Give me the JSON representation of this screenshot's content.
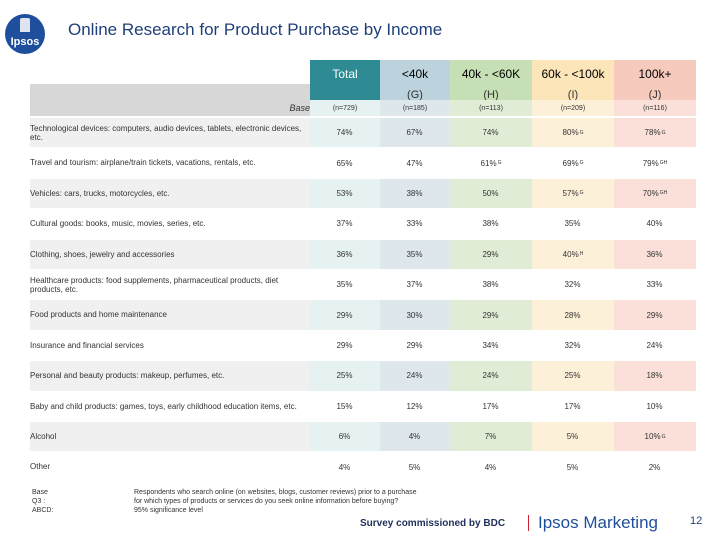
{
  "logo_text": "Ipsos",
  "title": "Online Research for Product Purchase by Income",
  "columns": [
    {
      "label": "Total",
      "letter": ""
    },
    {
      "label": "<40k",
      "letter": "(G)"
    },
    {
      "label": "40k - <60K",
      "letter": "(H)"
    },
    {
      "label": "60k - <100k",
      "letter": "(I)"
    },
    {
      "label": "100k+",
      "letter": "(J)"
    }
  ],
  "base_row": {
    "label": "Base",
    "values": [
      "(n=729)",
      "(n=185)",
      "(n=113)",
      "(n=209)",
      "(n=116)"
    ]
  },
  "rows": [
    {
      "label": "Technological devices: computers, audio devices, tablets, electronic devices, etc.",
      "values": [
        [
          "74%",
          ""
        ],
        [
          "67%",
          ""
        ],
        [
          "74%",
          ""
        ],
        [
          "80%",
          "G"
        ],
        [
          "78%",
          "G"
        ]
      ]
    },
    {
      "label": "Travel and tourism: airplane/train tickets, vacations, rentals, etc.",
      "values": [
        [
          "65%",
          ""
        ],
        [
          "47%",
          ""
        ],
        [
          "61%",
          "G"
        ],
        [
          "69%",
          "G"
        ],
        [
          "79%",
          "GH"
        ]
      ]
    },
    {
      "label": "Vehicles: cars, trucks, motorcycles, etc.",
      "values": [
        [
          "53%",
          ""
        ],
        [
          "38%",
          ""
        ],
        [
          "50%",
          ""
        ],
        [
          "57%",
          "G"
        ],
        [
          "70%",
          "GH"
        ]
      ]
    },
    {
      "label": "Cultural goods: books, music, movies, series, etc.",
      "values": [
        [
          "37%",
          ""
        ],
        [
          "33%",
          ""
        ],
        [
          "38%",
          ""
        ],
        [
          "35%",
          ""
        ],
        [
          "40%",
          ""
        ]
      ]
    },
    {
      "label": "Clothing, shoes, jewelry and accessories",
      "values": [
        [
          "36%",
          ""
        ],
        [
          "35%",
          ""
        ],
        [
          "29%",
          ""
        ],
        [
          "40%",
          "H"
        ],
        [
          "36%",
          ""
        ]
      ]
    },
    {
      "label": "Healthcare products: food supplements, pharmaceutical products, diet products, etc.",
      "values": [
        [
          "35%",
          ""
        ],
        [
          "37%",
          ""
        ],
        [
          "38%",
          ""
        ],
        [
          "32%",
          ""
        ],
        [
          "33%",
          ""
        ]
      ]
    },
    {
      "label": "Food products and home maintenance",
      "values": [
        [
          "29%",
          ""
        ],
        [
          "30%",
          ""
        ],
        [
          "29%",
          ""
        ],
        [
          "28%",
          ""
        ],
        [
          "29%",
          ""
        ]
      ]
    },
    {
      "label": "Insurance and financial services",
      "values": [
        [
          "29%",
          ""
        ],
        [
          "29%",
          ""
        ],
        [
          "34%",
          ""
        ],
        [
          "32%",
          ""
        ],
        [
          "24%",
          ""
        ]
      ]
    },
    {
      "label": "Personal and beauty products: makeup, perfumes, etc.",
      "values": [
        [
          "25%",
          ""
        ],
        [
          "24%",
          ""
        ],
        [
          "24%",
          ""
        ],
        [
          "25%",
          ""
        ],
        [
          "18%",
          ""
        ]
      ]
    },
    {
      "label": "Baby and child products: games, toys, early childhood education items, etc.",
      "values": [
        [
          "15%",
          ""
        ],
        [
          "12%",
          ""
        ],
        [
          "17%",
          ""
        ],
        [
          "17%",
          ""
        ],
        [
          "10%",
          ""
        ]
      ]
    },
    {
      "label": "Alcohol",
      "values": [
        [
          "6%",
          ""
        ],
        [
          "4%",
          ""
        ],
        [
          "7%",
          ""
        ],
        [
          "5%",
          ""
        ],
        [
          "10%",
          "G"
        ]
      ]
    },
    {
      "label": "Other",
      "values": [
        [
          "4%",
          ""
        ],
        [
          "5%",
          ""
        ],
        [
          "4%",
          ""
        ],
        [
          "5%",
          ""
        ],
        [
          "2%",
          ""
        ]
      ]
    }
  ],
  "footnotes": {
    "labels": [
      "Base",
      "Q3 :",
      "ABCD:"
    ],
    "texts": [
      "Respondents who search online (on websites, blogs, customer reviews) prior to a purchase",
      "for which types of products or services do you seek online information before buying?",
      "95% significance level"
    ]
  },
  "footer": {
    "survey": "Survey commissioned by BDC",
    "brand": "Ipsos Marketing",
    "page": "12"
  }
}
